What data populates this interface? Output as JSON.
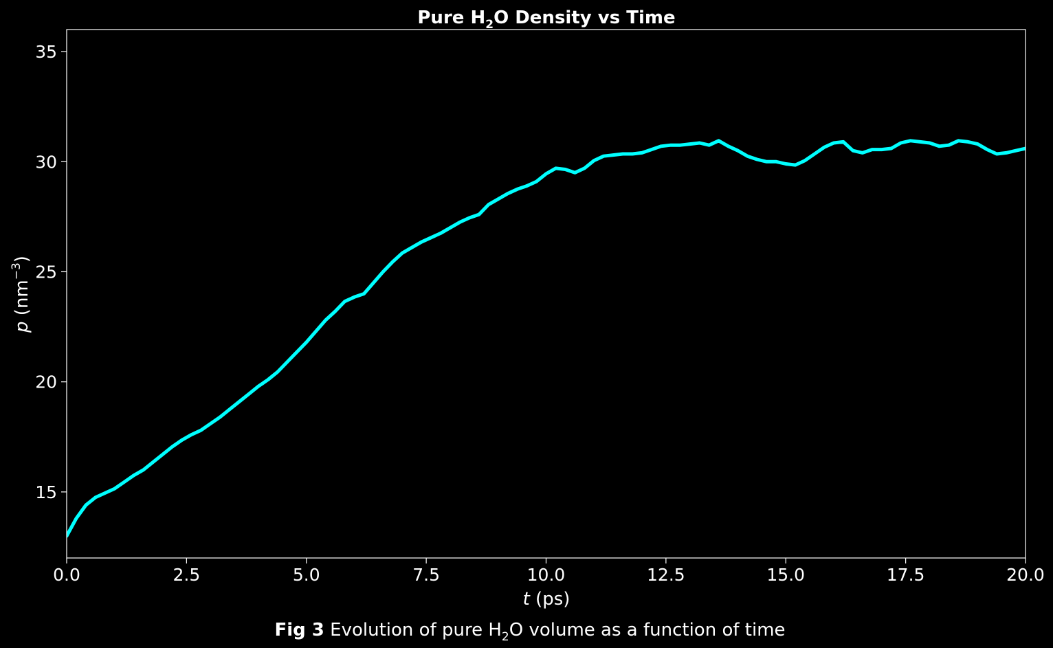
{
  "chart_data": {
    "type": "line",
    "title": {
      "prefix": "Pure H",
      "subscript": "2",
      "suffix": "O Density vs Time"
    },
    "xlabel": {
      "variable": "t",
      "unit": " (ps)"
    },
    "ylabel": {
      "variable": "p",
      "unit_prefix": " (nm",
      "unit_exponent": "−3",
      "unit_suffix": ")"
    },
    "caption": {
      "bold": "Fig 3",
      "text_prefix": " Evolution of pure H",
      "subscript": "2",
      "text_suffix": "O volume as a function of time"
    },
    "xlim": [
      0,
      20
    ],
    "ylim": [
      12,
      36
    ],
    "xticks": [
      "0.0",
      "2.5",
      "5.0",
      "7.5",
      "10.0",
      "12.5",
      "15.0",
      "17.5",
      "20.0"
    ],
    "yticks": [
      "15",
      "20",
      "25",
      "30",
      "35"
    ],
    "grid": false,
    "line_color": "#00ffff",
    "background": "#000000",
    "series": [
      {
        "x": [
          0,
          0.2,
          0.4,
          0.6,
          0.8,
          1.0,
          1.2,
          1.4,
          1.6,
          1.8,
          2.0,
          2.2,
          2.4,
          2.6,
          2.8,
          3.0,
          3.2,
          3.4,
          3.6,
          3.8,
          4.0,
          4.2,
          4.4,
          4.6,
          4.8,
          5.0,
          5.2,
          5.4,
          5.6,
          5.8,
          6.0,
          6.2,
          6.4,
          6.6,
          6.8,
          7.0,
          7.2,
          7.4,
          7.6,
          7.8,
          8.0,
          8.2,
          8.4,
          8.6,
          8.8,
          9.0,
          9.2,
          9.4,
          9.6,
          9.8,
          10.0,
          10.2,
          10.4,
          10.6,
          10.8,
          11.0,
          11.2,
          11.4,
          11.6,
          11.8,
          12.0,
          12.2,
          12.4,
          12.6,
          12.8,
          13.0,
          13.2,
          13.4,
          13.6,
          13.8,
          14.0,
          14.2,
          14.4,
          14.6,
          14.8,
          15.0,
          15.2,
          15.4,
          15.6,
          15.8,
          16.0,
          16.2,
          16.4,
          16.6,
          16.8,
          17.0,
          17.2,
          17.4,
          17.6,
          17.8,
          18.0,
          18.2,
          18.4,
          18.6,
          18.8,
          19.0,
          19.2,
          19.4,
          19.6,
          19.8,
          20.0
        ],
        "y": [
          13.0,
          13.8,
          14.4,
          14.75,
          14.95,
          15.15,
          15.45,
          15.75,
          16.0,
          16.35,
          16.7,
          17.05,
          17.35,
          17.6,
          17.8,
          18.1,
          18.4,
          18.75,
          19.1,
          19.45,
          19.8,
          20.1,
          20.45,
          20.9,
          21.35,
          21.8,
          22.3,
          22.8,
          23.2,
          23.65,
          23.85,
          24.0,
          24.5,
          25.0,
          25.45,
          25.85,
          26.1,
          26.35,
          26.55,
          26.75,
          27.0,
          27.25,
          27.45,
          27.6,
          28.05,
          28.3,
          28.55,
          28.75,
          28.9,
          29.1,
          29.45,
          29.7,
          29.65,
          29.5,
          29.7,
          30.05,
          30.25,
          30.3,
          30.35,
          30.35,
          30.4,
          30.55,
          30.7,
          30.75,
          30.75,
          30.8,
          30.85,
          30.75,
          30.95,
          30.7,
          30.5,
          30.25,
          30.1,
          30.0,
          30.0,
          29.9,
          29.85,
          30.05,
          30.35,
          30.65,
          30.85,
          30.9,
          30.5,
          30.4,
          30.55,
          30.55,
          30.6,
          30.85,
          30.95,
          30.9,
          30.85,
          30.7,
          30.75,
          30.95,
          30.9,
          30.8,
          30.55,
          30.35,
          30.4,
          30.5,
          30.6
        ]
      }
    ]
  }
}
